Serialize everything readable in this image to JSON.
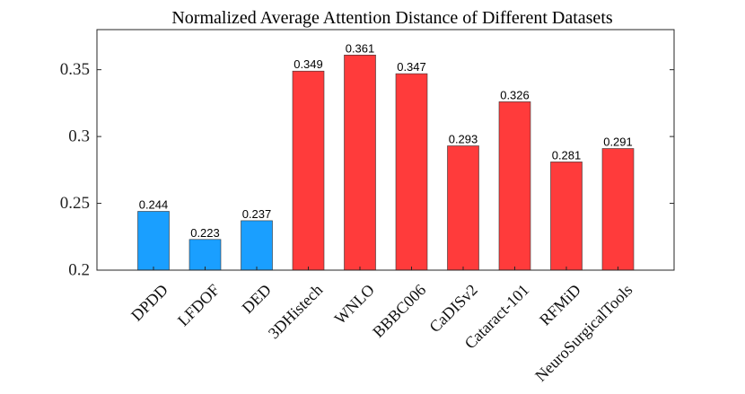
{
  "chart_data": {
    "type": "bar",
    "title": "Normalized Average Attention Distance of Different Datasets",
    "xlabel": "",
    "ylabel": "",
    "ylim": [
      0.2,
      0.38
    ],
    "yticks": [
      0.2,
      0.25,
      0.3,
      0.35
    ],
    "ytick_labels": [
      "0.2",
      "0.25",
      "0.3",
      "0.35"
    ],
    "categories": [
      "DPDD",
      "LFDOF",
      "DED",
      "3DHistech",
      "WNLO",
      "BBBC006",
      "CaDISv2",
      "Cataract-101",
      "RFMiD",
      "NeuroSurgicalTools"
    ],
    "values": [
      0.244,
      0.223,
      0.237,
      0.349,
      0.361,
      0.347,
      0.293,
      0.326,
      0.281,
      0.291
    ],
    "value_labels": [
      "0.244",
      "0.223",
      "0.237",
      "0.349",
      "0.361",
      "0.347",
      "0.293",
      "0.326",
      "0.281",
      "0.291"
    ],
    "bar_colors": [
      "#1a9fff",
      "#1a9fff",
      "#1a9fff",
      "#ff3b3b",
      "#ff3b3b",
      "#ff3b3b",
      "#ff3b3b",
      "#ff3b3b",
      "#ff3b3b",
      "#ff3b3b"
    ],
    "grid": false,
    "legend": "none"
  }
}
